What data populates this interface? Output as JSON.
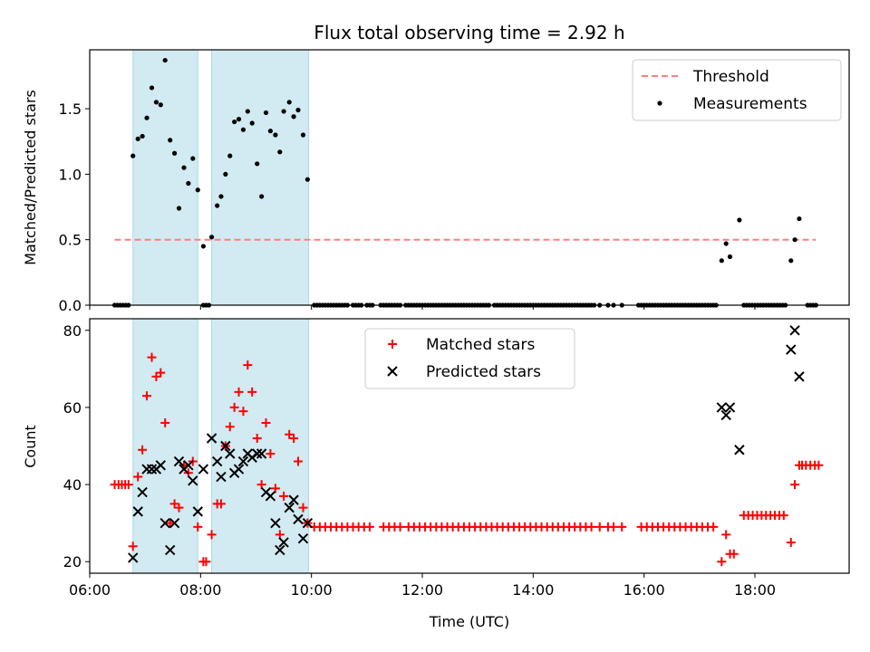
{
  "title": "Flux total observing time = 2.92 h",
  "chart_data": [
    {
      "type": "scatter",
      "panel": "top",
      "xlabel": "",
      "ylabel": "Matched/Predicted stars",
      "xlim": [
        6.0,
        19.7
      ],
      "ylim": [
        0.0,
        1.95
      ],
      "yticks": [
        0.0,
        0.5,
        1.0,
        1.5
      ],
      "ytick_labels": [
        "0.0",
        "0.5",
        "1.0",
        "1.5"
      ],
      "xtick_labels_shown": false,
      "shaded_intervals": [
        [
          6.78,
          7.95
        ],
        [
          8.2,
          9.95
        ]
      ],
      "shade_color": "#add8e6",
      "threshold": {
        "name": "Threshold",
        "y": 0.5,
        "x_start": 6.45,
        "x_end": 19.1,
        "color": "#ff7f7f"
      },
      "legend": {
        "position": "upper-right",
        "entries": [
          "Threshold",
          "Measurements"
        ]
      },
      "series": [
        {
          "name": "Measurements",
          "color": "#000000",
          "x": [
            6.78,
            6.87,
            6.95,
            7.03,
            7.12,
            7.2,
            7.28,
            7.36,
            7.45,
            7.53,
            7.61,
            7.7,
            7.78,
            7.86,
            7.95,
            8.05,
            8.2,
            8.3,
            8.37,
            8.45,
            8.53,
            8.61,
            8.69,
            8.77,
            8.85,
            8.93,
            9.02,
            9.1,
            9.18,
            9.26,
            9.35,
            9.43,
            9.5,
            9.6,
            9.68,
            9.76,
            9.85,
            9.93,
            17.4,
            17.48,
            17.55,
            17.72,
            18.65,
            18.72,
            18.8
          ],
          "y": [
            1.14,
            1.27,
            1.29,
            1.43,
            1.66,
            1.55,
            1.53,
            1.87,
            1.26,
            1.16,
            0.74,
            1.05,
            0.93,
            1.12,
            0.88,
            0.45,
            0.52,
            0.76,
            0.83,
            1.0,
            1.14,
            1.4,
            1.42,
            1.34,
            1.48,
            1.39,
            1.08,
            0.83,
            1.47,
            1.33,
            1.3,
            1.17,
            1.48,
            1.55,
            1.44,
            1.49,
            1.3,
            0.96,
            0.34,
            0.47,
            0.37,
            0.65,
            0.34,
            0.5,
            0.66
          ],
          "zeros_x": [
            6.45,
            6.5,
            6.55,
            6.6,
            6.65,
            6.7,
            8.05,
            8.1,
            8.15,
            10.05,
            10.1,
            10.15,
            10.2,
            10.25,
            10.3,
            10.35,
            10.4,
            10.45,
            10.5,
            10.55,
            10.6,
            10.65,
            10.75,
            10.8,
            10.85,
            10.9,
            11.0,
            11.05,
            11.1,
            11.25,
            11.3,
            11.35,
            11.4,
            11.45,
            11.5,
            11.55,
            11.6,
            11.7,
            11.75,
            11.8,
            11.85,
            11.9,
            11.95,
            12.0,
            12.05,
            12.1,
            12.15,
            12.2,
            12.25,
            12.3,
            12.35,
            12.4,
            12.45,
            12.5,
            12.55,
            12.6,
            12.65,
            12.7,
            12.75,
            12.8,
            12.85,
            12.9,
            12.95,
            13.0,
            13.05,
            13.1,
            13.15,
            13.2,
            13.3,
            13.35,
            13.4,
            13.45,
            13.5,
            13.55,
            13.6,
            13.65,
            13.7,
            13.75,
            13.8,
            13.85,
            13.9,
            13.95,
            14.0,
            14.05,
            14.1,
            14.15,
            14.2,
            14.25,
            14.3,
            14.35,
            14.4,
            14.45,
            14.5,
            14.55,
            14.6,
            14.65,
            14.7,
            14.75,
            14.8,
            14.85,
            14.9,
            14.95,
            15.0,
            15.05,
            15.1,
            15.2,
            15.35,
            15.45,
            15.6,
            15.9,
            15.95,
            16.0,
            16.05,
            16.1,
            16.15,
            16.2,
            16.25,
            16.3,
            16.35,
            16.4,
            16.45,
            16.5,
            16.55,
            16.6,
            16.65,
            16.7,
            16.75,
            16.8,
            16.85,
            16.9,
            16.95,
            17.0,
            17.05,
            17.1,
            17.15,
            17.2,
            17.25,
            17.3,
            17.8,
            17.85,
            17.9,
            17.95,
            18.0,
            18.05,
            18.1,
            18.15,
            18.2,
            18.25,
            18.3,
            18.35,
            18.4,
            18.45,
            18.5,
            18.55,
            18.95,
            19.0,
            19.05,
            19.1
          ]
        }
      ]
    },
    {
      "type": "scatter",
      "panel": "bottom",
      "xlabel": "Time (UTC)",
      "ylabel": "Count",
      "xlim": [
        6.0,
        19.7
      ],
      "ylim": [
        17,
        83
      ],
      "xticks": [
        6,
        8,
        10,
        12,
        14,
        16,
        18
      ],
      "xtick_labels": [
        "06:00",
        "08:00",
        "10:00",
        "12:00",
        "14:00",
        "16:00",
        "18:00"
      ],
      "yticks": [
        20,
        40,
        60,
        80
      ],
      "ytick_labels": [
        "20",
        "40",
        "60",
        "80"
      ],
      "shaded_intervals": [
        [
          6.78,
          7.95
        ],
        [
          8.2,
          9.95
        ]
      ],
      "shade_color": "#add8e6",
      "legend": {
        "position": "upper-center",
        "entries": [
          "Matched stars",
          "Predicted stars"
        ]
      },
      "series": [
        {
          "name": "Matched stars",
          "marker": "plus",
          "color": "#ff0000",
          "x": [
            6.45,
            6.52,
            6.58,
            6.64,
            6.7,
            6.78,
            6.87,
            6.95,
            7.03,
            7.12,
            7.2,
            7.28,
            7.36,
            7.45,
            7.53,
            7.61,
            7.7,
            7.78,
            7.86,
            7.95,
            8.05,
            8.1,
            8.2,
            8.3,
            8.37,
            8.45,
            8.53,
            8.61,
            8.69,
            8.77,
            8.85,
            8.93,
            9.02,
            9.1,
            9.18,
            9.26,
            9.35,
            9.43,
            9.5,
            9.6,
            9.68,
            9.76,
            9.85,
            9.93,
            17.4,
            17.48,
            17.55,
            17.62,
            18.65,
            18.72,
            18.8
          ],
          "y": [
            40,
            40,
            40,
            40,
            40,
            24,
            42,
            49,
            63,
            73,
            68,
            69,
            56,
            30,
            35,
            34,
            45,
            43,
            46,
            29,
            20,
            20,
            27,
            35,
            35,
            50,
            55,
            60,
            64,
            59,
            71,
            64,
            52,
            40,
            56,
            48,
            39,
            27,
            37,
            53,
            52,
            46,
            34,
            30,
            20,
            27,
            22,
            22,
            25,
            40,
            45
          ],
          "flat_segments": [
            {
              "y": 29,
              "x": [
                10.05,
                10.15,
                10.25,
                10.35,
                10.45,
                10.55,
                10.65,
                10.75,
                10.85,
                10.95,
                11.05,
                11.3,
                11.4,
                11.5,
                11.6,
                11.75,
                11.85,
                11.95,
                12.05,
                12.15,
                12.25,
                12.35,
                12.45,
                12.55,
                12.65,
                12.75,
                12.85,
                12.95,
                13.05,
                13.15,
                13.25,
                13.35,
                13.45,
                13.55,
                13.65,
                13.75,
                13.85,
                13.95,
                14.05,
                14.15,
                14.25,
                14.35,
                14.45,
                14.55,
                14.65,
                14.75,
                14.85,
                14.95,
                15.05,
                15.2,
                15.35,
                15.45,
                15.6,
                15.95,
                16.05,
                16.15,
                16.25,
                16.35,
                16.45,
                16.55,
                16.65,
                16.75,
                16.85,
                16.95,
                17.05,
                17.15,
                17.25
              ]
            },
            {
              "y": 32,
              "x": [
                17.8,
                17.88,
                17.96,
                18.04,
                18.12,
                18.2,
                18.28,
                18.36,
                18.44,
                18.52
              ]
            },
            {
              "y": 45,
              "x": [
                18.85,
                18.92,
                19.0,
                19.08,
                19.15
              ]
            }
          ]
        },
        {
          "name": "Predicted stars",
          "marker": "x",
          "color": "#000000",
          "x": [
            6.78,
            6.87,
            6.95,
            7.03,
            7.12,
            7.2,
            7.28,
            7.36,
            7.45,
            7.53,
            7.61,
            7.7,
            7.78,
            7.86,
            7.95,
            8.05,
            8.2,
            8.3,
            8.37,
            8.45,
            8.53,
            8.61,
            8.69,
            8.77,
            8.85,
            8.93,
            9.02,
            9.1,
            9.18,
            9.26,
            9.35,
            9.43,
            9.5,
            9.6,
            9.68,
            9.76,
            9.85,
            9.93,
            17.4,
            17.48,
            17.55,
            17.72,
            18.65,
            18.72,
            18.8
          ],
          "y": [
            21,
            33,
            38,
            44,
            44,
            44,
            45,
            30,
            23,
            30,
            46,
            44,
            45,
            41,
            33,
            44,
            52,
            46,
            42,
            50,
            48,
            43,
            44,
            46,
            48,
            47,
            48,
            48,
            38,
            37,
            30,
            23,
            25,
            34,
            36,
            31,
            26,
            30,
            60,
            58,
            60,
            49,
            75,
            80,
            68
          ]
        }
      ]
    }
  ]
}
